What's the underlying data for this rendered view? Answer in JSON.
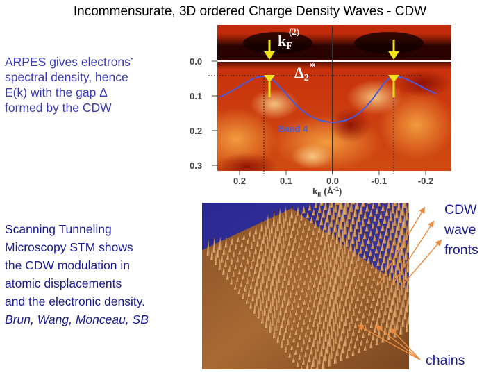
{
  "title": "Incommensurate, 3D ordered Charge Density Waves - CDW",
  "arpes_text": [
    "ARPES gives electrons’",
    "spectral density, hence",
    "E(k) with the gap Δ",
    "formed by the CDW"
  ],
  "stm_text": [
    "Scanning Tunneling",
    "Microscopy STM shows",
    "the CDW modulation in",
    "atomic displacements",
    "and the electronic density."
  ],
  "stm_credit": "Brun, Wang, Monceau, SB",
  "wave_label": [
    "CDW",
    "wave",
    "fronts"
  ],
  "chains_label": "chains",
  "arpes_plot": {
    "kf_label": "k",
    "kf_sub": "F",
    "kf_sup": "(2)",
    "gap_label": "Δ",
    "gap_sub": "2",
    "gap_sup": "*",
    "band_label": "Band 4",
    "y_ticks": [
      "0.0",
      "0.1",
      "0.2",
      "0.3"
    ],
    "x_ticks": [
      "0.2",
      "0.1",
      "0.0",
      "-0.1",
      "-0.2"
    ],
    "x_axis_label": "k",
    "x_axis_sub": "ll",
    "x_axis_unit": "(Å",
    "x_axis_unit_sup": "-1",
    "x_axis_unit_close": ")"
  },
  "colors": {
    "heatmap_dark": "#2a0400",
    "heatmap_red": "#b81e08",
    "heatmap_orange": "#e87a20",
    "band_line": "#4a5bd8",
    "arrow_yellow": "#f2e21a",
    "stm_background": "#2a2890",
    "stm_copper": "#c8843e",
    "wave_arrows": "#ec8a3c",
    "caption_blue": "#1a1a90"
  }
}
